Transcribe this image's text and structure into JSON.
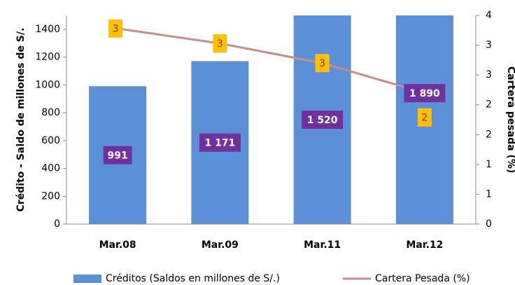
{
  "chart_data": {
    "type": "bar_line",
    "categories": [
      "Mar.08",
      "Mar.09",
      "Mar.11",
      "Mar.12"
    ],
    "ylabel": "Crédito - Saldo de millones de S/.",
    "y2label": "Cartera pesada (%)",
    "ylim": [
      0,
      1500
    ],
    "yticks": [
      0,
      200,
      400,
      600,
      800,
      1000,
      1200,
      1400
    ],
    "y2lim": [
      0,
      3.5
    ],
    "y2ticks": [
      0,
      {
        "value": 0.5,
        "label": "1"
      },
      1,
      {
        "value": 1.5,
        "label": "2"
      },
      2,
      {
        "value": 2.5,
        "label": "3"
      },
      3,
      {
        "value": 3.5,
        "label": "4"
      }
    ],
    "series": [
      {
        "name": "Créditos (Saldos en millones de S/.)",
        "color": "#5b8fd8",
        "type": "bar",
        "values": [
          991,
          1171,
          1520,
          1890
        ],
        "value_labels": [
          "991",
          "1 171",
          "1 520",
          "1 890"
        ]
      },
      {
        "name": "Cartera Pesada (%)",
        "color": "#c98b88",
        "type": "line",
        "axis": "y2",
        "values": [
          3.28,
          3.03,
          2.7,
          2.2
        ],
        "value_labels": [
          "3",
          "3",
          "3",
          "2"
        ]
      }
    ]
  }
}
